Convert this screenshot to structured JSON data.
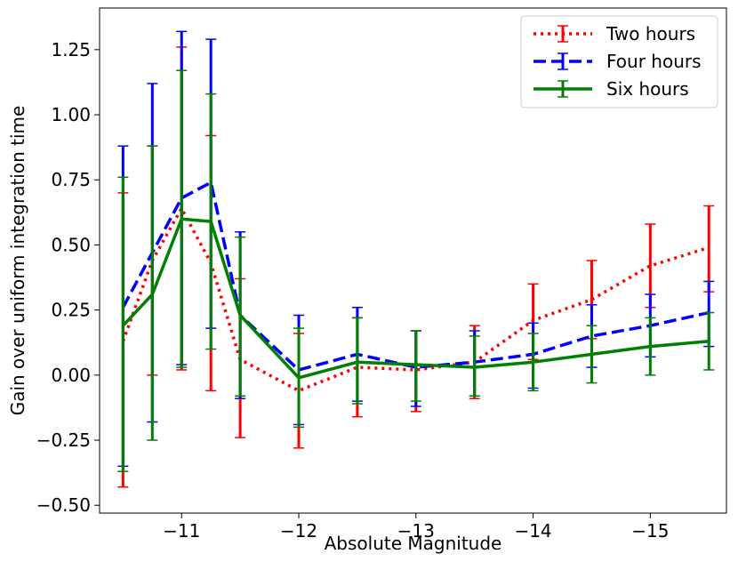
{
  "chart_data": {
    "type": "line",
    "title": "",
    "xlabel": "Absolute Magnitude",
    "ylabel": "Gain over uniform integration time",
    "xlim": [
      -10.3,
      -15.65
    ],
    "ylim": [
      -0.53,
      1.41
    ],
    "xticks": [
      {
        "value": -11,
        "label": "−11"
      },
      {
        "value": -12,
        "label": "−12"
      },
      {
        "value": -13,
        "label": "−13"
      },
      {
        "value": -14,
        "label": "−14"
      },
      {
        "value": -15,
        "label": "−15"
      }
    ],
    "yticks": [
      {
        "value": -0.5,
        "label": "−0.50"
      },
      {
        "value": -0.25,
        "label": "−0.25"
      },
      {
        "value": 0.0,
        "label": "0.00"
      },
      {
        "value": 0.25,
        "label": "0.25"
      },
      {
        "value": 0.5,
        "label": "0.50"
      },
      {
        "value": 0.75,
        "label": "0.75"
      },
      {
        "value": 1.0,
        "label": "1.00"
      },
      {
        "value": 1.25,
        "label": "1.25"
      }
    ],
    "legend_position": "top-right",
    "series": [
      {
        "name": "Two hours",
        "color": "#ff0000",
        "style": "dotted",
        "x": [
          -10.5,
          -10.75,
          -11.0,
          -11.25,
          -11.5,
          -12.0,
          -12.5,
          -13.0,
          -13.5,
          -14.0,
          -14.5,
          -15.0,
          -15.5
        ],
        "y": [
          0.13,
          0.44,
          0.64,
          0.43,
          0.06,
          -0.06,
          0.03,
          0.02,
          0.05,
          0.21,
          0.29,
          0.42,
          0.49
        ],
        "lower": [
          -0.43,
          0.0,
          0.02,
          -0.06,
          -0.24,
          -0.28,
          -0.16,
          -0.14,
          -0.09,
          0.06,
          0.14,
          0.26,
          0.32
        ],
        "upper": [
          0.7,
          0.88,
          1.26,
          0.92,
          0.37,
          0.16,
          0.22,
          0.17,
          0.19,
          0.35,
          0.44,
          0.58,
          0.65
        ]
      },
      {
        "name": "Four hours",
        "color": "#0000ff",
        "style": "dashed",
        "x": [
          -10.5,
          -10.75,
          -11.0,
          -11.25,
          -11.5,
          -12.0,
          -12.5,
          -13.0,
          -13.5,
          -14.0,
          -14.5,
          -15.0,
          -15.5
        ],
        "y": [
          0.26,
          0.47,
          0.68,
          0.74,
          0.23,
          0.02,
          0.08,
          0.03,
          0.05,
          0.08,
          0.15,
          0.19,
          0.24
        ],
        "lower": [
          -0.35,
          -0.18,
          0.04,
          0.18,
          -0.09,
          -0.19,
          -0.1,
          -0.12,
          -0.08,
          -0.05,
          0.03,
          0.07,
          0.11
        ],
        "upper": [
          0.88,
          1.12,
          1.32,
          1.29,
          0.55,
          0.23,
          0.26,
          0.17,
          0.17,
          0.2,
          0.27,
          0.31,
          0.36
        ]
      },
      {
        "name": "Six hours",
        "color": "#008000",
        "style": "solid",
        "x": [
          -10.5,
          -10.75,
          -11.0,
          -11.25,
          -11.5,
          -12.0,
          -12.5,
          -13.0,
          -13.5,
          -14.0,
          -14.5,
          -15.0,
          -15.5
        ],
        "y": [
          0.19,
          0.31,
          0.6,
          0.59,
          0.23,
          -0.01,
          0.05,
          0.04,
          0.03,
          0.05,
          0.08,
          0.11,
          0.13
        ],
        "lower": [
          -0.37,
          -0.25,
          0.03,
          0.1,
          -0.08,
          -0.2,
          -0.11,
          -0.1,
          -0.08,
          -0.06,
          -0.03,
          0.0,
          0.02
        ],
        "upper": [
          0.76,
          0.88,
          1.17,
          1.08,
          0.53,
          0.18,
          0.22,
          0.17,
          0.15,
          0.16,
          0.19,
          0.22,
          0.24
        ]
      }
    ]
  }
}
